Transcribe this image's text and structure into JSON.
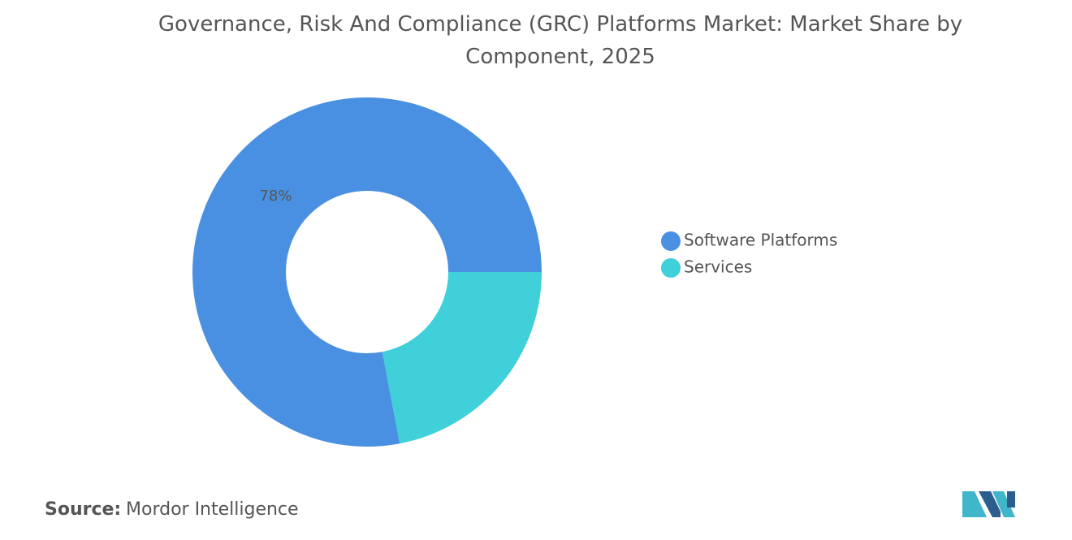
{
  "chart_data": {
    "type": "donut",
    "title": "Governance, Risk And Compliance (GRC) Platforms Market: Market Share by Component, 2025",
    "categories": [
      "Software Platforms",
      "Services"
    ],
    "values": [
      78,
      22
    ],
    "value_labels": [
      "78%",
      null
    ],
    "colors": [
      "#4a90e2",
      "#3fd0d9"
    ],
    "legend": "right"
  },
  "source": {
    "label": "Source:",
    "text": "Mordor Intelligence"
  }
}
